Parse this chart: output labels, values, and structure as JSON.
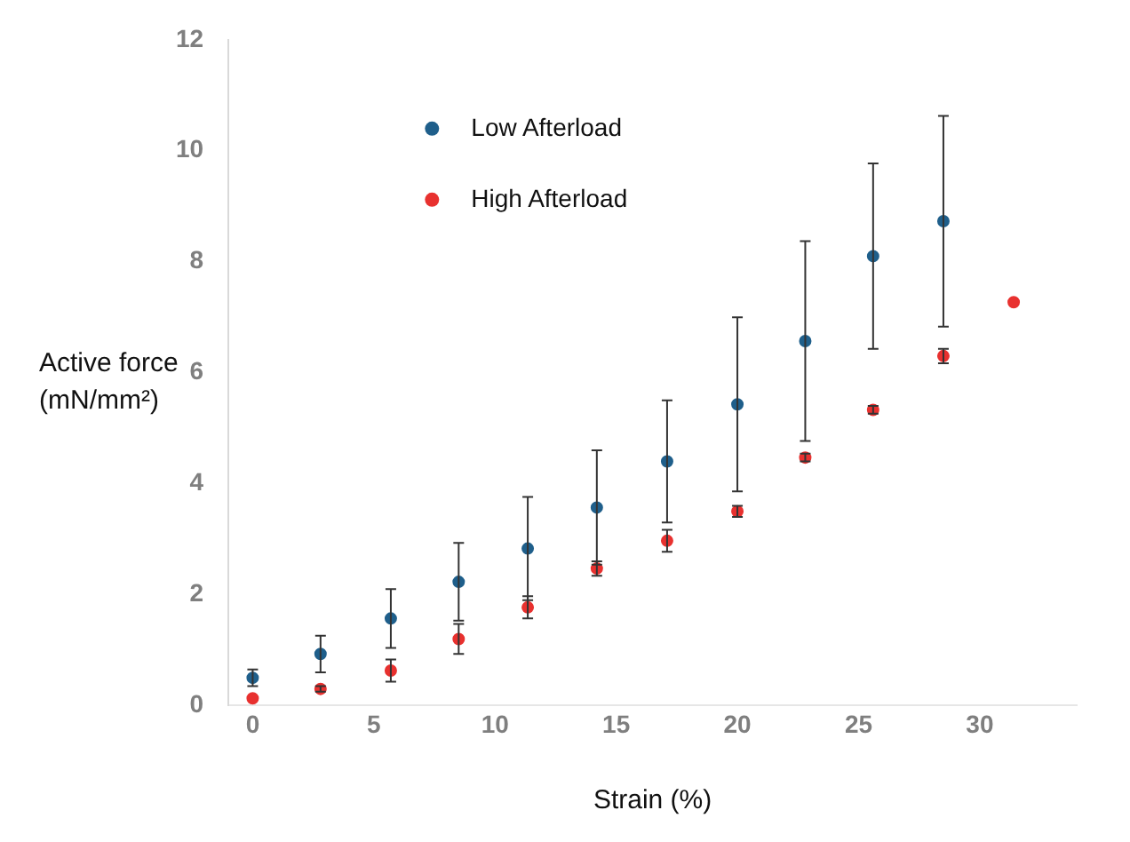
{
  "chart_data": {
    "type": "scatter",
    "xlabel": "Strain (%)",
    "ylabel": "Active force (mN/mm²)",
    "xlim": [
      -1,
      34
    ],
    "xticks": [
      0,
      5,
      10,
      15,
      20,
      25,
      30
    ],
    "ylim": [
      0,
      12
    ],
    "yticks": [
      0,
      2,
      4,
      6,
      8,
      10,
      12
    ],
    "grid": false,
    "legend": "top",
    "marker": "circle",
    "series": [
      {
        "name": "Low Afterload",
        "color": "#1f5f8b",
        "x": [
          0,
          2.8,
          5.7,
          8.5,
          11.35,
          14.2,
          17.1,
          20,
          22.8,
          25.6,
          28.5
        ],
        "values": [
          0.5,
          0.93,
          1.57,
          2.23,
          2.83,
          3.57,
          4.4,
          5.43,
          6.57,
          8.1,
          8.73
        ],
        "errors": [
          0.15,
          0.33,
          0.53,
          0.7,
          0.93,
          1.03,
          1.1,
          1.57,
          1.8,
          1.67,
          1.9
        ]
      },
      {
        "name": "High Afterload",
        "color": "#e8312f",
        "x": [
          0,
          2.8,
          5.7,
          8.5,
          11.35,
          14.2,
          17.1,
          20,
          22.8,
          25.6,
          28.5,
          31.4
        ],
        "values": [
          0.13,
          0.3,
          0.63,
          1.2,
          1.77,
          2.47,
          2.97,
          3.5,
          4.47,
          5.33,
          6.3,
          7.27
        ],
        "errors": [
          null,
          0.05,
          0.2,
          0.27,
          0.2,
          0.13,
          0.2,
          0.1,
          0.07,
          0.07,
          0.13,
          null
        ]
      }
    ]
  }
}
